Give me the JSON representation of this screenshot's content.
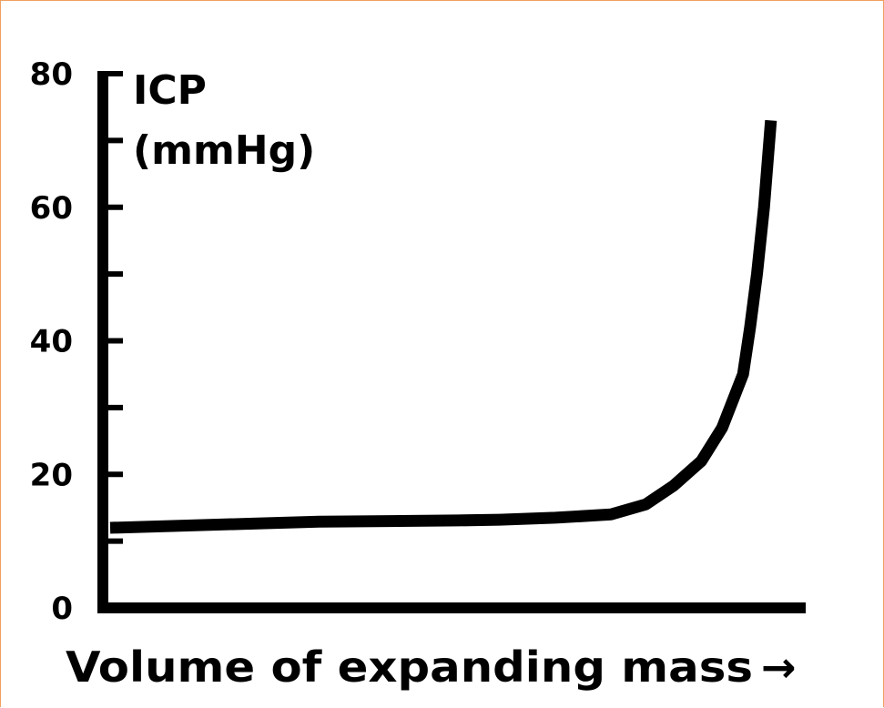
{
  "chart_data": {
    "type": "line",
    "title": "",
    "ylabel_line1": "ICP",
    "ylabel_line2": "(mmHg)",
    "xlabel": "Volume of expanding mass",
    "xlabel_arrow": "→",
    "ylim": [
      0,
      80
    ],
    "y_major_ticks": [
      0,
      20,
      40,
      60,
      80
    ],
    "y_tick_labels": [
      "0",
      "20",
      "40",
      "60",
      "80"
    ],
    "y_minor_ticks": [
      10,
      30,
      50,
      70
    ],
    "xlim": [
      0,
      100
    ],
    "x_tick_labels": [],
    "grid": false,
    "legend": "none",
    "line_color": "#000000",
    "series": [
      {
        "x": [
          0,
          10,
          20,
          30,
          40,
          50,
          56,
          64,
          72,
          77,
          81,
          85,
          88,
          91,
          92,
          93,
          94,
          95
        ],
        "y": [
          12,
          12.3,
          12.6,
          12.9,
          13,
          13.1,
          13.2,
          13.5,
          14,
          15.5,
          18.3,
          22,
          27,
          35,
          42,
          50,
          60,
          73
        ]
      }
    ]
  }
}
